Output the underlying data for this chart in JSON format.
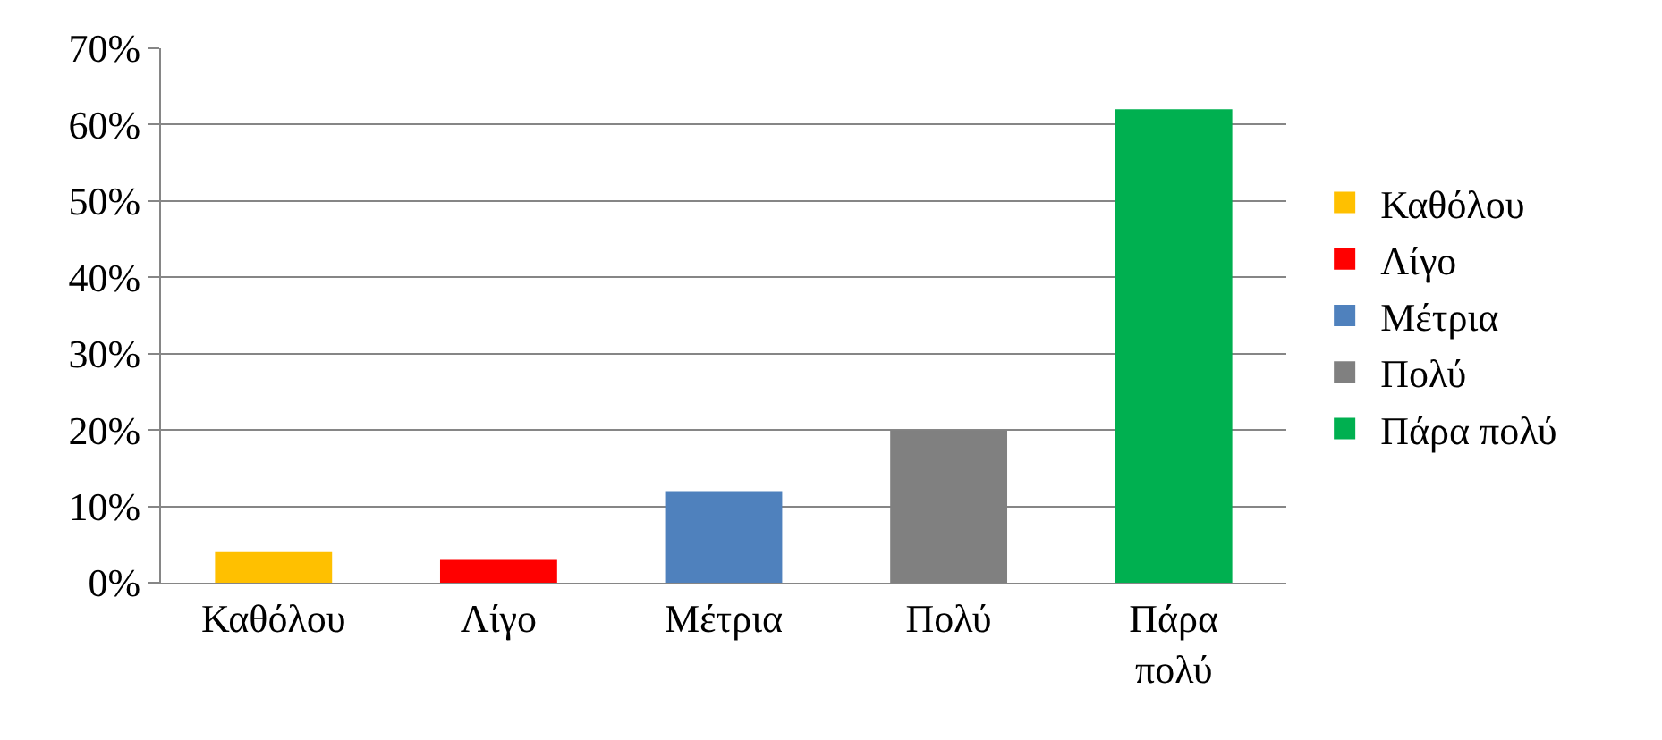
{
  "chart_data": {
    "type": "bar",
    "categories": [
      "Καθόλου",
      "Λίγο",
      "Μέτρια",
      "Πολύ",
      "Πάρα πολύ"
    ],
    "series": [
      {
        "name": "Καθόλου",
        "color": "#ffc000",
        "values": [
          4,
          null,
          null,
          null,
          null
        ]
      },
      {
        "name": "Λίγο",
        "color": "#ff0000",
        "values": [
          null,
          3,
          null,
          null,
          null
        ]
      },
      {
        "name": "Μέτρια",
        "color": "#4f81bd",
        "values": [
          null,
          null,
          12,
          null,
          null
        ]
      },
      {
        "name": "Πολύ",
        "color": "#808080",
        "values": [
          null,
          null,
          null,
          20,
          null
        ]
      },
      {
        "name": "Πάρα πολύ",
        "color": "#00b050",
        "values": [
          null,
          null,
          null,
          null,
          62
        ]
      }
    ],
    "ylim": [
      0,
      70
    ],
    "yticks": [
      {
        "value": 0,
        "label": "0%"
      },
      {
        "value": 10,
        "label": "10%"
      },
      {
        "value": 20,
        "label": "20%"
      },
      {
        "value": 30,
        "label": "30%"
      },
      {
        "value": 40,
        "label": "40%"
      },
      {
        "value": 50,
        "label": "50%"
      },
      {
        "value": 60,
        "label": "60%"
      },
      {
        "value": 70,
        "label": "70%"
      }
    ],
    "grid": "y",
    "legend": "right"
  }
}
